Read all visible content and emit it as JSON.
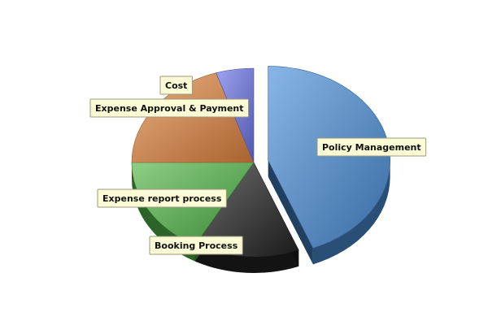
{
  "chart_data": {
    "type": "pie",
    "style": "3d-exploded",
    "slices": [
      {
        "label": "Policy Management",
        "value": 44,
        "color": "#4a8fd8",
        "exploded": true
      },
      {
        "label": "Booking Process",
        "value": 14,
        "color": "#222222"
      },
      {
        "label": "Expense report process",
        "value": 17,
        "color": "#4fb545"
      },
      {
        "label": "Expense Approval & Payment",
        "value": 20,
        "color": "#e0843e"
      },
      {
        "label": "Cost",
        "value": 5,
        "color": "#6a73e6"
      }
    ]
  }
}
